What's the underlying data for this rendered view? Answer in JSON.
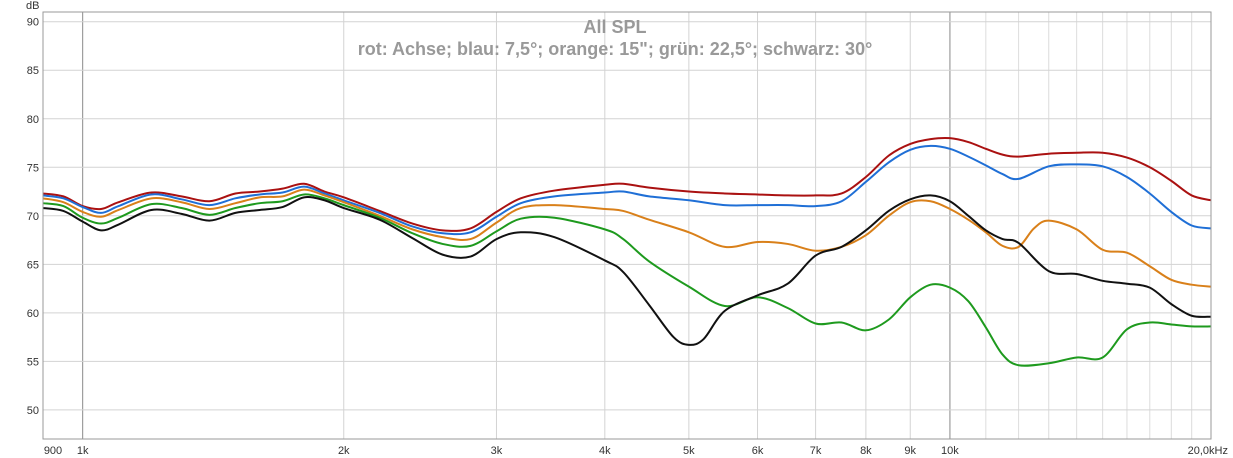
{
  "chart_data": {
    "type": "line",
    "title": "All SPL",
    "subtitle": "rot: Achse; blau: 7,5°; orange: 15\"; grün: 22,5°; schwarz: 30°",
    "ylabel": "dB",
    "xlabel": "",
    "xscale": "log",
    "xlim": [
      900,
      20000
    ],
    "ylim": [
      47,
      91
    ],
    "grid": true,
    "legend": "none",
    "y_ticks": [
      50,
      55,
      60,
      65,
      70,
      75,
      80,
      85,
      90
    ],
    "y_tick_labels": [
      "50",
      "55",
      "60",
      "65",
      "70",
      "75",
      "80",
      "85",
      "90"
    ],
    "x_ticks": [
      900,
      1000,
      2000,
      3000,
      4000,
      5000,
      6000,
      7000,
      8000,
      9000,
      10000,
      20000
    ],
    "x_tick_labels": [
      "900",
      "1k",
      "2k",
      "3k",
      "4k",
      "5k",
      "6k",
      "7k",
      "8k",
      "9k",
      "10k",
      "20,0kHz"
    ],
    "series": [
      {
        "color": "#aa1111",
        "points": [
          [
            900,
            72.3
          ],
          [
            950,
            72.0
          ],
          [
            1000,
            71.0
          ],
          [
            1050,
            70.7
          ],
          [
            1100,
            71.4
          ],
          [
            1200,
            72.4
          ],
          [
            1300,
            72.0
          ],
          [
            1400,
            71.5
          ],
          [
            1500,
            72.3
          ],
          [
            1600,
            72.5
          ],
          [
            1700,
            72.8
          ],
          [
            1800,
            73.3
          ],
          [
            1900,
            72.5
          ],
          [
            2000,
            71.9
          ],
          [
            2200,
            70.5
          ],
          [
            2400,
            69.2
          ],
          [
            2600,
            68.5
          ],
          [
            2800,
            68.7
          ],
          [
            3000,
            70.4
          ],
          [
            3200,
            71.8
          ],
          [
            3500,
            72.6
          ],
          [
            4000,
            73.2
          ],
          [
            4200,
            73.3
          ],
          [
            4500,
            72.9
          ],
          [
            5000,
            72.5
          ],
          [
            5500,
            72.3
          ],
          [
            6000,
            72.2
          ],
          [
            6500,
            72.1
          ],
          [
            7000,
            72.1
          ],
          [
            7500,
            72.3
          ],
          [
            8000,
            74.0
          ],
          [
            8500,
            76.2
          ],
          [
            9000,
            77.4
          ],
          [
            9500,
            77.9
          ],
          [
            10000,
            78.0
          ],
          [
            10500,
            77.6
          ],
          [
            11000,
            76.9
          ],
          [
            11500,
            76.3
          ],
          [
            12000,
            76.1
          ],
          [
            13000,
            76.4
          ],
          [
            14000,
            76.5
          ],
          [
            15000,
            76.5
          ],
          [
            16000,
            76.0
          ],
          [
            17000,
            75.0
          ],
          [
            18000,
            73.6
          ],
          [
            19000,
            72.1
          ],
          [
            20000,
            71.6
          ]
        ]
      },
      {
        "color": "#1f6fd6",
        "points": [
          [
            900,
            72.1
          ],
          [
            950,
            71.8
          ],
          [
            1000,
            70.9
          ],
          [
            1050,
            70.3
          ],
          [
            1100,
            71.0
          ],
          [
            1200,
            72.2
          ],
          [
            1300,
            71.7
          ],
          [
            1400,
            71.1
          ],
          [
            1500,
            71.8
          ],
          [
            1600,
            72.2
          ],
          [
            1700,
            72.4
          ],
          [
            1800,
            73.0
          ],
          [
            1900,
            72.3
          ],
          [
            2000,
            71.6
          ],
          [
            2200,
            70.3
          ],
          [
            2400,
            68.9
          ],
          [
            2600,
            68.2
          ],
          [
            2800,
            68.3
          ],
          [
            3000,
            69.9
          ],
          [
            3200,
            71.3
          ],
          [
            3500,
            72.0
          ],
          [
            4000,
            72.4
          ],
          [
            4200,
            72.5
          ],
          [
            4500,
            72.0
          ],
          [
            5000,
            71.6
          ],
          [
            5500,
            71.1
          ],
          [
            6000,
            71.1
          ],
          [
            6500,
            71.1
          ],
          [
            7000,
            71.0
          ],
          [
            7500,
            71.5
          ],
          [
            8000,
            73.5
          ],
          [
            8500,
            75.5
          ],
          [
            9000,
            76.8
          ],
          [
            9500,
            77.2
          ],
          [
            10000,
            76.9
          ],
          [
            10500,
            76.1
          ],
          [
            11000,
            75.2
          ],
          [
            11500,
            74.3
          ],
          [
            12000,
            73.8
          ],
          [
            13000,
            75.1
          ],
          [
            14000,
            75.3
          ],
          [
            15000,
            75.1
          ],
          [
            16000,
            74.0
          ],
          [
            17000,
            72.3
          ],
          [
            18000,
            70.4
          ],
          [
            19000,
            69.0
          ],
          [
            20000,
            68.7
          ]
        ]
      },
      {
        "color": "#d9801a",
        "points": [
          [
            900,
            71.8
          ],
          [
            950,
            71.4
          ],
          [
            1000,
            70.4
          ],
          [
            1050,
            69.9
          ],
          [
            1100,
            70.6
          ],
          [
            1200,
            71.8
          ],
          [
            1300,
            71.4
          ],
          [
            1400,
            70.7
          ],
          [
            1500,
            71.3
          ],
          [
            1600,
            71.9
          ],
          [
            1700,
            72.0
          ],
          [
            1800,
            72.7
          ],
          [
            1900,
            72.1
          ],
          [
            2000,
            71.4
          ],
          [
            2200,
            70.0
          ],
          [
            2400,
            68.6
          ],
          [
            2600,
            67.8
          ],
          [
            2800,
            67.6
          ],
          [
            3000,
            69.3
          ],
          [
            3200,
            70.8
          ],
          [
            3500,
            71.1
          ],
          [
            4000,
            70.7
          ],
          [
            4200,
            70.5
          ],
          [
            4500,
            69.6
          ],
          [
            5000,
            68.3
          ],
          [
            5500,
            66.8
          ],
          [
            6000,
            67.3
          ],
          [
            6500,
            67.1
          ],
          [
            7000,
            66.4
          ],
          [
            7500,
            66.8
          ],
          [
            8000,
            68.0
          ],
          [
            8500,
            70.0
          ],
          [
            9000,
            71.4
          ],
          [
            9500,
            71.5
          ],
          [
            10000,
            70.7
          ],
          [
            10500,
            69.6
          ],
          [
            11000,
            68.3
          ],
          [
            11500,
            66.9
          ],
          [
            12000,
            66.8
          ],
          [
            12500,
            68.7
          ],
          [
            13000,
            69.5
          ],
          [
            14000,
            68.6
          ],
          [
            15000,
            66.5
          ],
          [
            16000,
            66.2
          ],
          [
            17000,
            64.8
          ],
          [
            18000,
            63.4
          ],
          [
            19000,
            62.9
          ],
          [
            20000,
            62.7
          ]
        ]
      },
      {
        "color": "#1e9a1e",
        "points": [
          [
            900,
            71.3
          ],
          [
            950,
            71.0
          ],
          [
            1000,
            69.8
          ],
          [
            1050,
            69.2
          ],
          [
            1100,
            69.8
          ],
          [
            1200,
            71.2
          ],
          [
            1300,
            70.8
          ],
          [
            1400,
            70.1
          ],
          [
            1500,
            70.8
          ],
          [
            1600,
            71.3
          ],
          [
            1700,
            71.5
          ],
          [
            1800,
            72.2
          ],
          [
            1900,
            71.8
          ],
          [
            2000,
            71.1
          ],
          [
            2200,
            69.8
          ],
          [
            2400,
            68.2
          ],
          [
            2600,
            67.1
          ],
          [
            2800,
            66.9
          ],
          [
            3000,
            68.4
          ],
          [
            3200,
            69.7
          ],
          [
            3500,
            69.8
          ],
          [
            4000,
            68.6
          ],
          [
            4200,
            67.6
          ],
          [
            4500,
            65.3
          ],
          [
            5000,
            62.7
          ],
          [
            5500,
            60.7
          ],
          [
            6000,
            61.6
          ],
          [
            6500,
            60.5
          ],
          [
            7000,
            58.9
          ],
          [
            7500,
            59.0
          ],
          [
            8000,
            58.2
          ],
          [
            8500,
            59.3
          ],
          [
            9000,
            61.6
          ],
          [
            9500,
            62.9
          ],
          [
            10000,
            62.6
          ],
          [
            10500,
            61.2
          ],
          [
            11000,
            58.5
          ],
          [
            11500,
            55.7
          ],
          [
            12000,
            54.6
          ],
          [
            13000,
            54.8
          ],
          [
            14000,
            55.4
          ],
          [
            15000,
            55.4
          ],
          [
            16000,
            58.3
          ],
          [
            17000,
            59.0
          ],
          [
            18000,
            58.8
          ],
          [
            19000,
            58.6
          ],
          [
            20000,
            58.6
          ]
        ]
      },
      {
        "color": "#111111",
        "points": [
          [
            900,
            70.8
          ],
          [
            950,
            70.5
          ],
          [
            1000,
            69.4
          ],
          [
            1050,
            68.5
          ],
          [
            1100,
            69.1
          ],
          [
            1200,
            70.6
          ],
          [
            1300,
            70.2
          ],
          [
            1400,
            69.5
          ],
          [
            1500,
            70.3
          ],
          [
            1600,
            70.6
          ],
          [
            1700,
            70.9
          ],
          [
            1800,
            71.9
          ],
          [
            1900,
            71.6
          ],
          [
            2000,
            70.8
          ],
          [
            2200,
            69.6
          ],
          [
            2400,
            67.7
          ],
          [
            2600,
            66.0
          ],
          [
            2800,
            65.8
          ],
          [
            3000,
            67.6
          ],
          [
            3200,
            68.3
          ],
          [
            3500,
            67.8
          ],
          [
            4000,
            65.4
          ],
          [
            4200,
            64.2
          ],
          [
            4500,
            60.8
          ],
          [
            4800,
            57.5
          ],
          [
            5000,
            56.7
          ],
          [
            5200,
            57.3
          ],
          [
            5500,
            60.2
          ],
          [
            6000,
            61.8
          ],
          [
            6500,
            63.0
          ],
          [
            7000,
            65.9
          ],
          [
            7500,
            66.8
          ],
          [
            8000,
            68.5
          ],
          [
            8500,
            70.5
          ],
          [
            9000,
            71.7
          ],
          [
            9500,
            72.1
          ],
          [
            10000,
            71.5
          ],
          [
            10500,
            70.0
          ],
          [
            11000,
            68.5
          ],
          [
            11500,
            67.6
          ],
          [
            12000,
            67.2
          ],
          [
            13000,
            64.3
          ],
          [
            14000,
            64.0
          ],
          [
            15000,
            63.3
          ],
          [
            16000,
            63.0
          ],
          [
            17000,
            62.6
          ],
          [
            18000,
            60.9
          ],
          [
            19000,
            59.7
          ],
          [
            20000,
            59.6
          ]
        ]
      }
    ]
  }
}
